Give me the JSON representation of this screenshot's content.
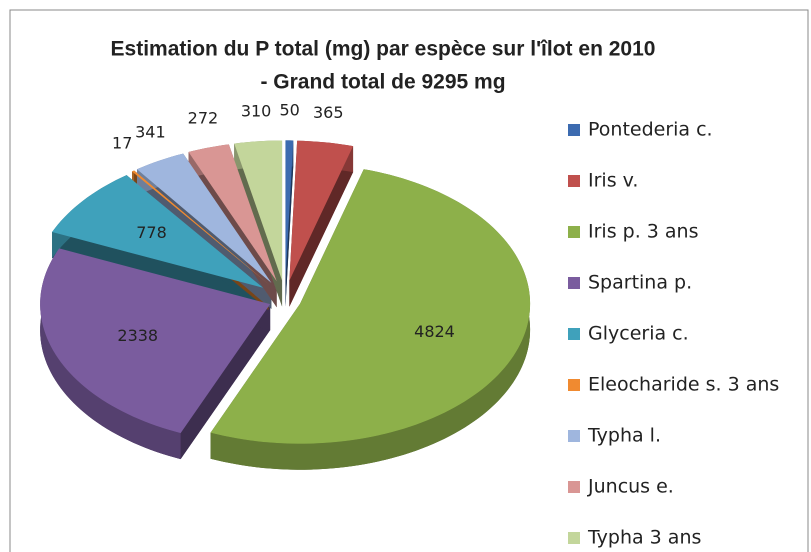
{
  "chart_data": {
    "type": "pie3d",
    "title_lines": [
      "Estimation du P total (mg) par espèce sur l'îlot en 2010",
      "- Grand total de 9295 mg"
    ],
    "categories": [
      "Pontederia c.",
      "Iris v.",
      "Iris p. 3 ans",
      "Spartina p.",
      "Glyceria c.",
      "Eleocharide s. 3 ans",
      "Typha l.",
      "Juncus e.",
      "Typha 3 ans"
    ],
    "values": [
      50,
      365,
      4824,
      2338,
      778,
      17,
      341,
      272,
      310
    ],
    "colors": [
      "#3c6bb0",
      "#c0504d",
      "#8db04a",
      "#7a5c9e",
      "#3fa1bb",
      "#f08a30",
      "#9fb6de",
      "#d99694",
      "#c3d69b"
    ],
    "legend": "right"
  }
}
